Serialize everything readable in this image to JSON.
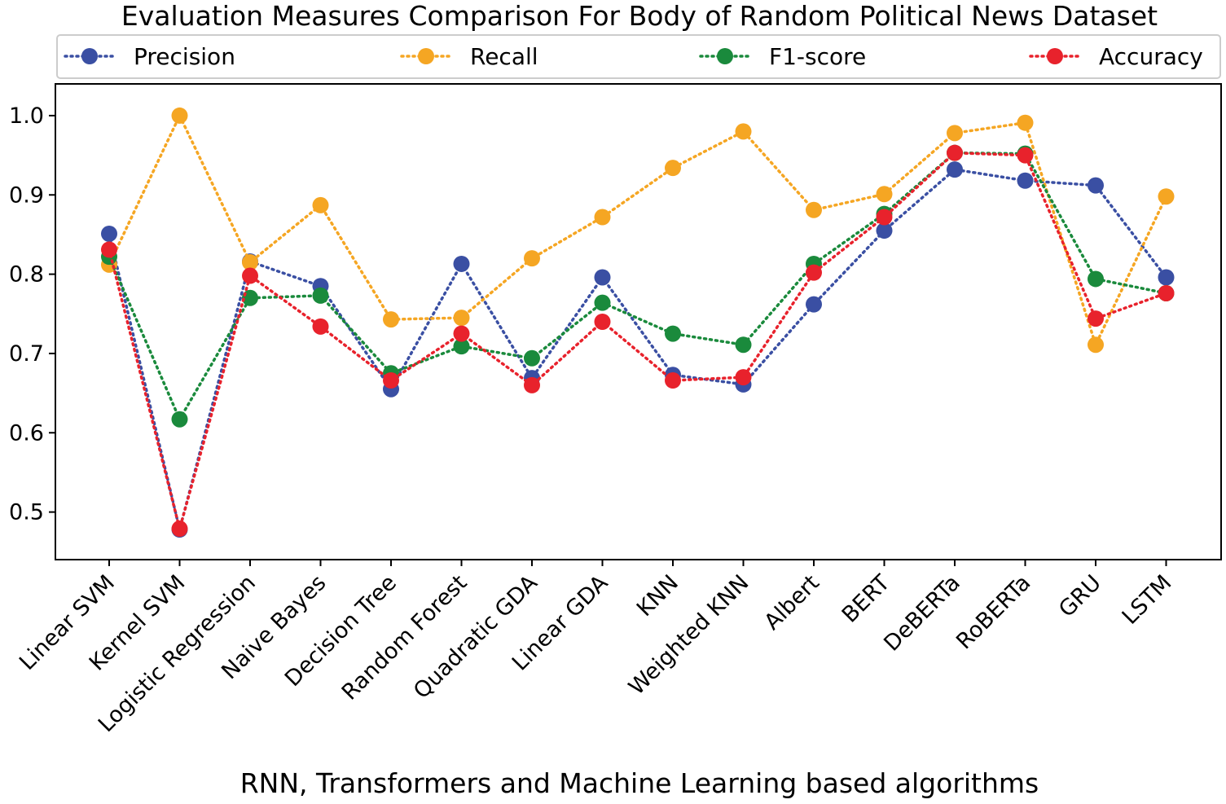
{
  "chart_data": {
    "type": "line",
    "title": "Evaluation Measures Comparison For Body of Random Political News Dataset",
    "xlabel": "RNN, Transformers and Machine Learning based algorithms",
    "ylabel": "",
    "ylim": [
      0.44,
      1.04
    ],
    "yticks": [
      0.5,
      0.6,
      0.7,
      0.8,
      0.9,
      1.0
    ],
    "ytick_labels": [
      "0.5",
      "0.6",
      "0.7",
      "0.8",
      "0.9",
      "1.0"
    ],
    "grid": false,
    "legend_position": "top",
    "categories": [
      "Linear SVM",
      "Kernel SVM",
      "Logistic Regression",
      "Naive Bayes",
      "Decision Tree",
      "Random Forest",
      "Quadratic GDA",
      "Linear GDA",
      "KNN",
      "Weighted KNN",
      "Albert",
      "BERT",
      "DeBERTa",
      "RoBERTa",
      "GRU",
      "LSTM"
    ],
    "series": [
      {
        "name": "Precision",
        "color": "#3a4fa3",
        "values": [
          0.851,
          0.478,
          0.816,
          0.785,
          0.655,
          0.813,
          0.669,
          0.796,
          0.673,
          0.661,
          0.762,
          0.855,
          0.932,
          0.918,
          0.912,
          0.796
        ]
      },
      {
        "name": "Recall",
        "color": "#f5a623",
        "values": [
          0.812,
          1.0,
          0.815,
          0.887,
          0.743,
          0.745,
          0.82,
          0.872,
          0.934,
          0.98,
          0.881,
          0.901,
          0.978,
          0.991,
          0.711,
          0.898
        ]
      },
      {
        "name": "F1-score",
        "color": "#1a8a3c",
        "values": [
          0.822,
          0.617,
          0.77,
          0.773,
          0.675,
          0.709,
          0.694,
          0.764,
          0.725,
          0.711,
          0.813,
          0.876,
          0.953,
          0.952,
          0.794,
          0.776
        ]
      },
      {
        "name": "Accuracy",
        "color": "#e8222c",
        "values": [
          0.831,
          0.479,
          0.798,
          0.734,
          0.666,
          0.725,
          0.66,
          0.74,
          0.666,
          0.67,
          0.802,
          0.872,
          0.953,
          0.95,
          0.744,
          0.776
        ]
      }
    ]
  }
}
